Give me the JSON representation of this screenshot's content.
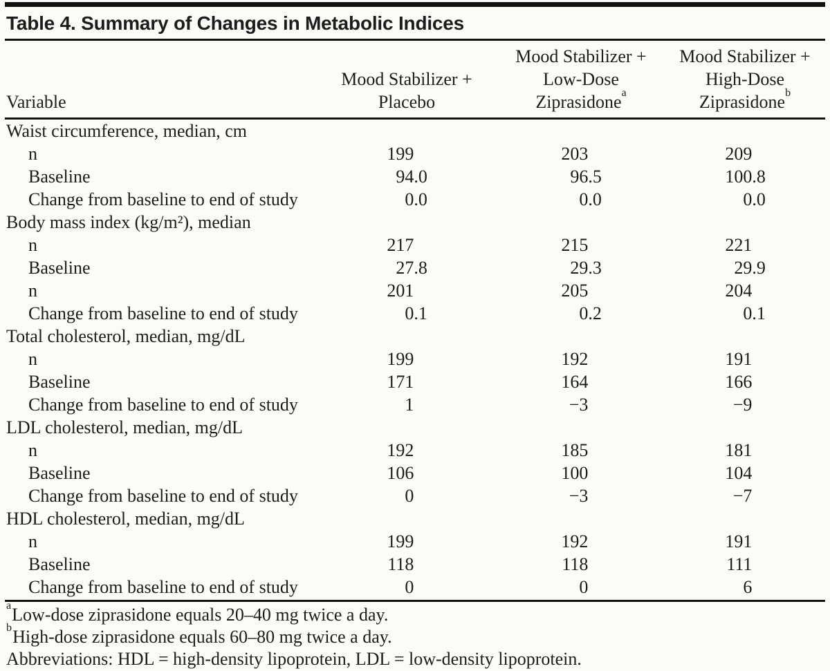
{
  "colors": {
    "background": "#fbfbf8",
    "text": "#1c1c1c",
    "rule": "#131313"
  },
  "title": "Table 4. Summary of Changes in Metabolic Indices",
  "columns": [
    {
      "label": "Variable",
      "sup": ""
    },
    {
      "lines": [
        "Mood Stabilizer +",
        "Placebo"
      ],
      "sup": ""
    },
    {
      "lines": [
        "Mood Stabilizer +",
        "Low-Dose",
        "Ziprasidone"
      ],
      "sup": "a"
    },
    {
      "lines": [
        "Mood Stabilizer +",
        "High-Dose",
        "Ziprasidone"
      ],
      "sup": "b"
    }
  ],
  "sections": [
    {
      "header": "Waist circumference, median, cm",
      "rows": [
        {
          "label": "n",
          "values": [
            "199",
            "203",
            "209"
          ]
        },
        {
          "label": "Baseline",
          "values": [
            "94.0",
            "96.5",
            "100.8"
          ]
        },
        {
          "label": "Change from baseline to end of study",
          "values": [
            "0.0",
            "0.0",
            "0.0"
          ]
        }
      ]
    },
    {
      "header": "Body mass index (kg/m²), median",
      "rows": [
        {
          "label": "n",
          "values": [
            "217",
            "215",
            "221"
          ]
        },
        {
          "label": "Baseline",
          "values": [
            "27.8",
            "29.3",
            "29.9"
          ]
        },
        {
          "label": "n",
          "values": [
            "201",
            "205",
            "204"
          ]
        },
        {
          "label": "Change from baseline to end of study",
          "values": [
            "0.1",
            "0.2",
            "0.1"
          ]
        }
      ]
    },
    {
      "header": "Total cholesterol, median, mg/dL",
      "rows": [
        {
          "label": "n",
          "values": [
            "199",
            "192",
            "191"
          ]
        },
        {
          "label": "Baseline",
          "values": [
            "171",
            "164",
            "166"
          ]
        },
        {
          "label": "Change from baseline to end of study",
          "values": [
            "1",
            "−3",
            "−9"
          ]
        }
      ]
    },
    {
      "header": "LDL cholesterol, median, mg/dL",
      "rows": [
        {
          "label": "n",
          "values": [
            "192",
            "185",
            "181"
          ]
        },
        {
          "label": "Baseline",
          "values": [
            "106",
            "100",
            "104"
          ]
        },
        {
          "label": "Change from baseline to end of study",
          "values": [
            "0",
            "−3",
            "−7"
          ]
        }
      ]
    },
    {
      "header": "HDL cholesterol, median, mg/dL",
      "rows": [
        {
          "label": "n",
          "values": [
            "199",
            "192",
            "191"
          ]
        },
        {
          "label": "Baseline",
          "values": [
            "118",
            "118",
            "111"
          ]
        },
        {
          "label": "Change from baseline to end of study",
          "values": [
            "0",
            "0",
            "6"
          ]
        }
      ]
    }
  ],
  "footnotes": [
    {
      "sup": "a",
      "text": "Low-dose ziprasidone equals 20–40 mg twice a day."
    },
    {
      "sup": "b",
      "text": "High-dose ziprasidone equals 60–80 mg twice a day."
    },
    {
      "sup": "",
      "text": "Abbreviations: HDL = high-density lipoprotein, LDL = low-density lipoprotein."
    }
  ]
}
